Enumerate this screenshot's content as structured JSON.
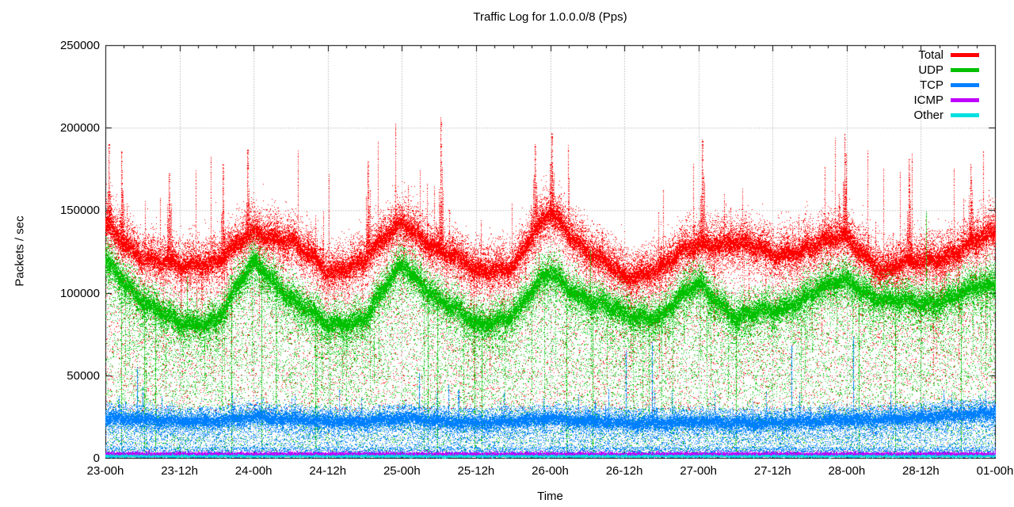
{
  "page": {
    "title": "Traffic Log for 1.0.0.0/8 (Pps)"
  },
  "chart_data": {
    "type": "scatter",
    "title": "Traffic Log for 1.0.0.0/8 (Pps)",
    "xlabel": "Time",
    "ylabel": "Packets / sec",
    "ylim": [
      0,
      250000
    ],
    "y_ticks": [
      0,
      50000,
      100000,
      150000,
      200000,
      250000
    ],
    "x_ticks": [
      {
        "hour": 0,
        "label": "23-00h"
      },
      {
        "hour": 12,
        "label": "23-12h"
      },
      {
        "hour": 24,
        "label": "24-00h"
      },
      {
        "hour": 36,
        "label": "24-12h"
      },
      {
        "hour": 48,
        "label": "25-00h"
      },
      {
        "hour": 60,
        "label": "25-12h"
      },
      {
        "hour": 72,
        "label": "26-00h"
      },
      {
        "hour": 84,
        "label": "26-12h"
      },
      {
        "hour": 96,
        "label": "27-00h"
      },
      {
        "hour": 108,
        "label": "27-12h"
      },
      {
        "hour": 120,
        "label": "28-00h"
      },
      {
        "hour": 132,
        "label": "28-12h"
      },
      {
        "hour": 144,
        "label": "01-00h"
      }
    ],
    "hours_span": 144,
    "minor_x_tick_hours": 3,
    "grid": {
      "style": "dotted",
      "color": "#9b9b9b"
    },
    "legend_position": "top-right-inside",
    "sample_hours": [
      0,
      6,
      12,
      18,
      24,
      30,
      36,
      42,
      48,
      54,
      60,
      66,
      72,
      78,
      84,
      90,
      96,
      102,
      108,
      114,
      120,
      126,
      132,
      138,
      144
    ],
    "series": [
      {
        "name": "Total",
        "color": "#ff0000",
        "centers": [
          140000,
          122000,
          115000,
          120000,
          135000,
          133000,
          110000,
          122000,
          141000,
          127000,
          112000,
          117000,
          148000,
          126000,
          108000,
          116000,
          129000,
          131000,
          122000,
          128000,
          133000,
          113000,
          119000,
          125000,
          136000
        ],
        "core_spread": 2600,
        "band_spread": 7500,
        "upper_fuzz": 9000,
        "lower_tail_max": 70000,
        "spike_dir": "up",
        "spike_max": 60000
      },
      {
        "name": "UDP",
        "color": "#00c000",
        "centers": [
          118000,
          96000,
          80000,
          85000,
          118000,
          98000,
          79000,
          86000,
          116000,
          97000,
          80000,
          88000,
          112000,
          96000,
          86000,
          87000,
          105000,
          86000,
          88000,
          100000,
          107000,
          96000,
          93000,
          100000,
          104000
        ],
        "core_spread": 2300,
        "band_spread": 7000,
        "upper_fuzz": 6000,
        "lower_tail_max": 95000,
        "spike_dir": "down",
        "spike_max": 90000
      },
      {
        "name": "TCP",
        "color": "#0080ff",
        "centers": [
          24000,
          23000,
          22000,
          22000,
          25000,
          23000,
          22000,
          22000,
          24000,
          22000,
          21000,
          22000,
          24000,
          22000,
          21000,
          21000,
          22000,
          21000,
          21000,
          22000,
          23000,
          23000,
          24000,
          26000,
          27000
        ],
        "core_spread": 1700,
        "band_spread": 4200,
        "upper_fuzz": 9000,
        "lower_tail_max": 22000,
        "spike_dir": "up",
        "spike_max": 53000
      },
      {
        "name": "ICMP",
        "color": "#c000ff",
        "centers": [
          2200,
          2200,
          2200,
          2200,
          2200,
          2200,
          2200,
          2200,
          2200,
          2200,
          2200,
          2200,
          2200,
          2200,
          2200,
          2200,
          2200,
          2200,
          2200,
          2200,
          2200,
          2200,
          2200,
          2200,
          2200
        ],
        "core_spread": 700,
        "band_spread": 900,
        "upper_fuzz": 900,
        "lower_tail_max": 1500,
        "spike_dir": "up",
        "spike_max": 4000
      },
      {
        "name": "Other",
        "color": "#00e0e0",
        "centers": [
          1000,
          1000,
          1000,
          1000,
          1000,
          1000,
          1000,
          1000,
          1000,
          1000,
          1000,
          1000,
          1000,
          1000,
          1000,
          1000,
          1000,
          1000,
          1000,
          1000,
          1000,
          1000,
          1000,
          1000,
          1000
        ],
        "core_spread": 450,
        "band_spread": 600,
        "upper_fuzz": 500,
        "lower_tail_max": 900,
        "spike_dir": "up",
        "spike_max": 4500
      }
    ],
    "notable_spikes": [
      {
        "hour": 0.5,
        "value": 190000
      },
      {
        "hour": 2.6,
        "value": 186000
      },
      {
        "hour": 10.2,
        "value": 172000
      },
      {
        "hour": 19.0,
        "value": 178000
      },
      {
        "hour": 23.0,
        "value": 187000
      },
      {
        "hour": 42.5,
        "value": 180000
      },
      {
        "hour": 54.3,
        "value": 207000
      },
      {
        "hour": 69.5,
        "value": 190000
      },
      {
        "hour": 72.2,
        "value": 197000
      },
      {
        "hour": 96.5,
        "value": 193000
      },
      {
        "hour": 119.6,
        "value": 196000
      },
      {
        "hour": 130.0,
        "value": 181000
      },
      {
        "hour": 140.0,
        "value": 178000
      }
    ]
  }
}
